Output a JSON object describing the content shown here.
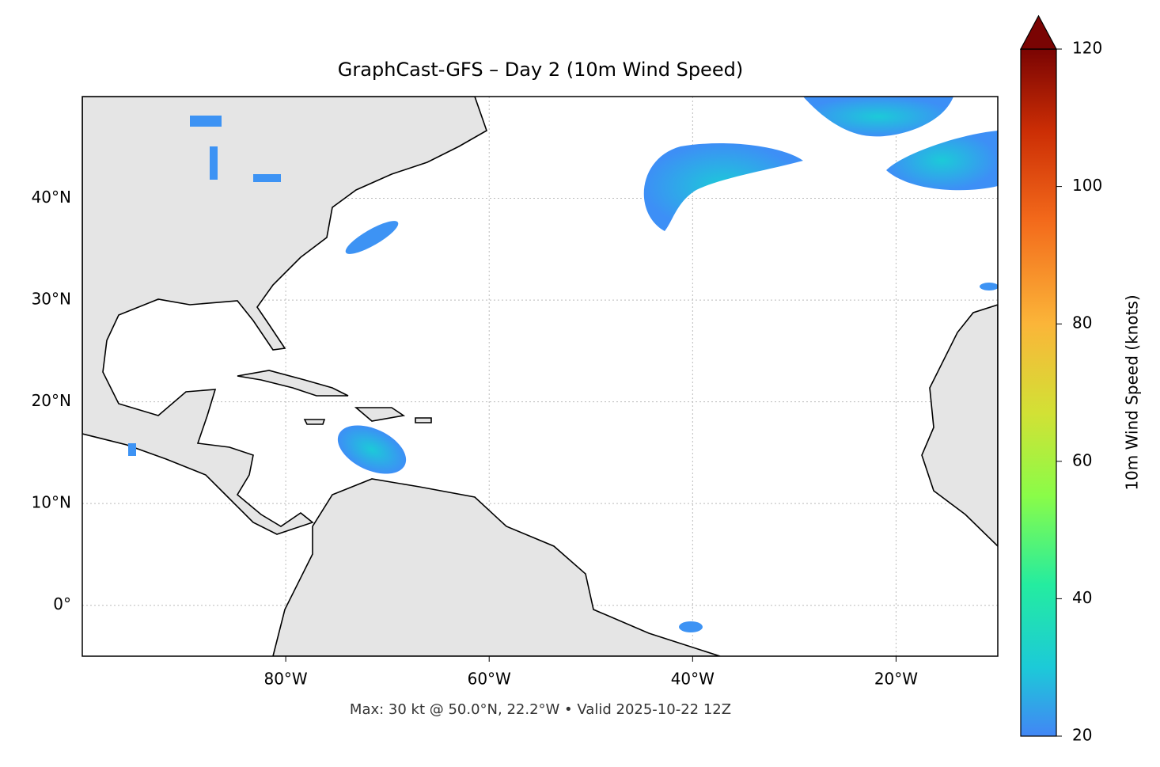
{
  "title": "GraphCast-GFS – Day 2 (10m Wind Speed)",
  "footnote": "Max: 30 kt @ 50.0°N, 22.2°W • Valid 2025-10-22 12Z",
  "map": {
    "xlim": [
      -100,
      -10
    ],
    "ylim": [
      -5,
      50
    ],
    "grid": true,
    "xticks": [
      {
        "value": -80,
        "label": "80°W"
      },
      {
        "value": -60,
        "label": "60°W"
      },
      {
        "value": -40,
        "label": "40°W"
      },
      {
        "value": -20,
        "label": "20°W"
      }
    ],
    "yticks": [
      {
        "value": 0,
        "label": "0°"
      },
      {
        "value": 10,
        "label": "10°N"
      },
      {
        "value": 20,
        "label": "20°N"
      },
      {
        "value": 30,
        "label": "30°N"
      },
      {
        "value": 40,
        "label": "40°N"
      }
    ]
  },
  "colorbar": {
    "label": "10m Wind Speed (knots)",
    "lim": [
      20,
      120
    ],
    "ticks": [
      20,
      40,
      60,
      80,
      100,
      120
    ]
  }
}
